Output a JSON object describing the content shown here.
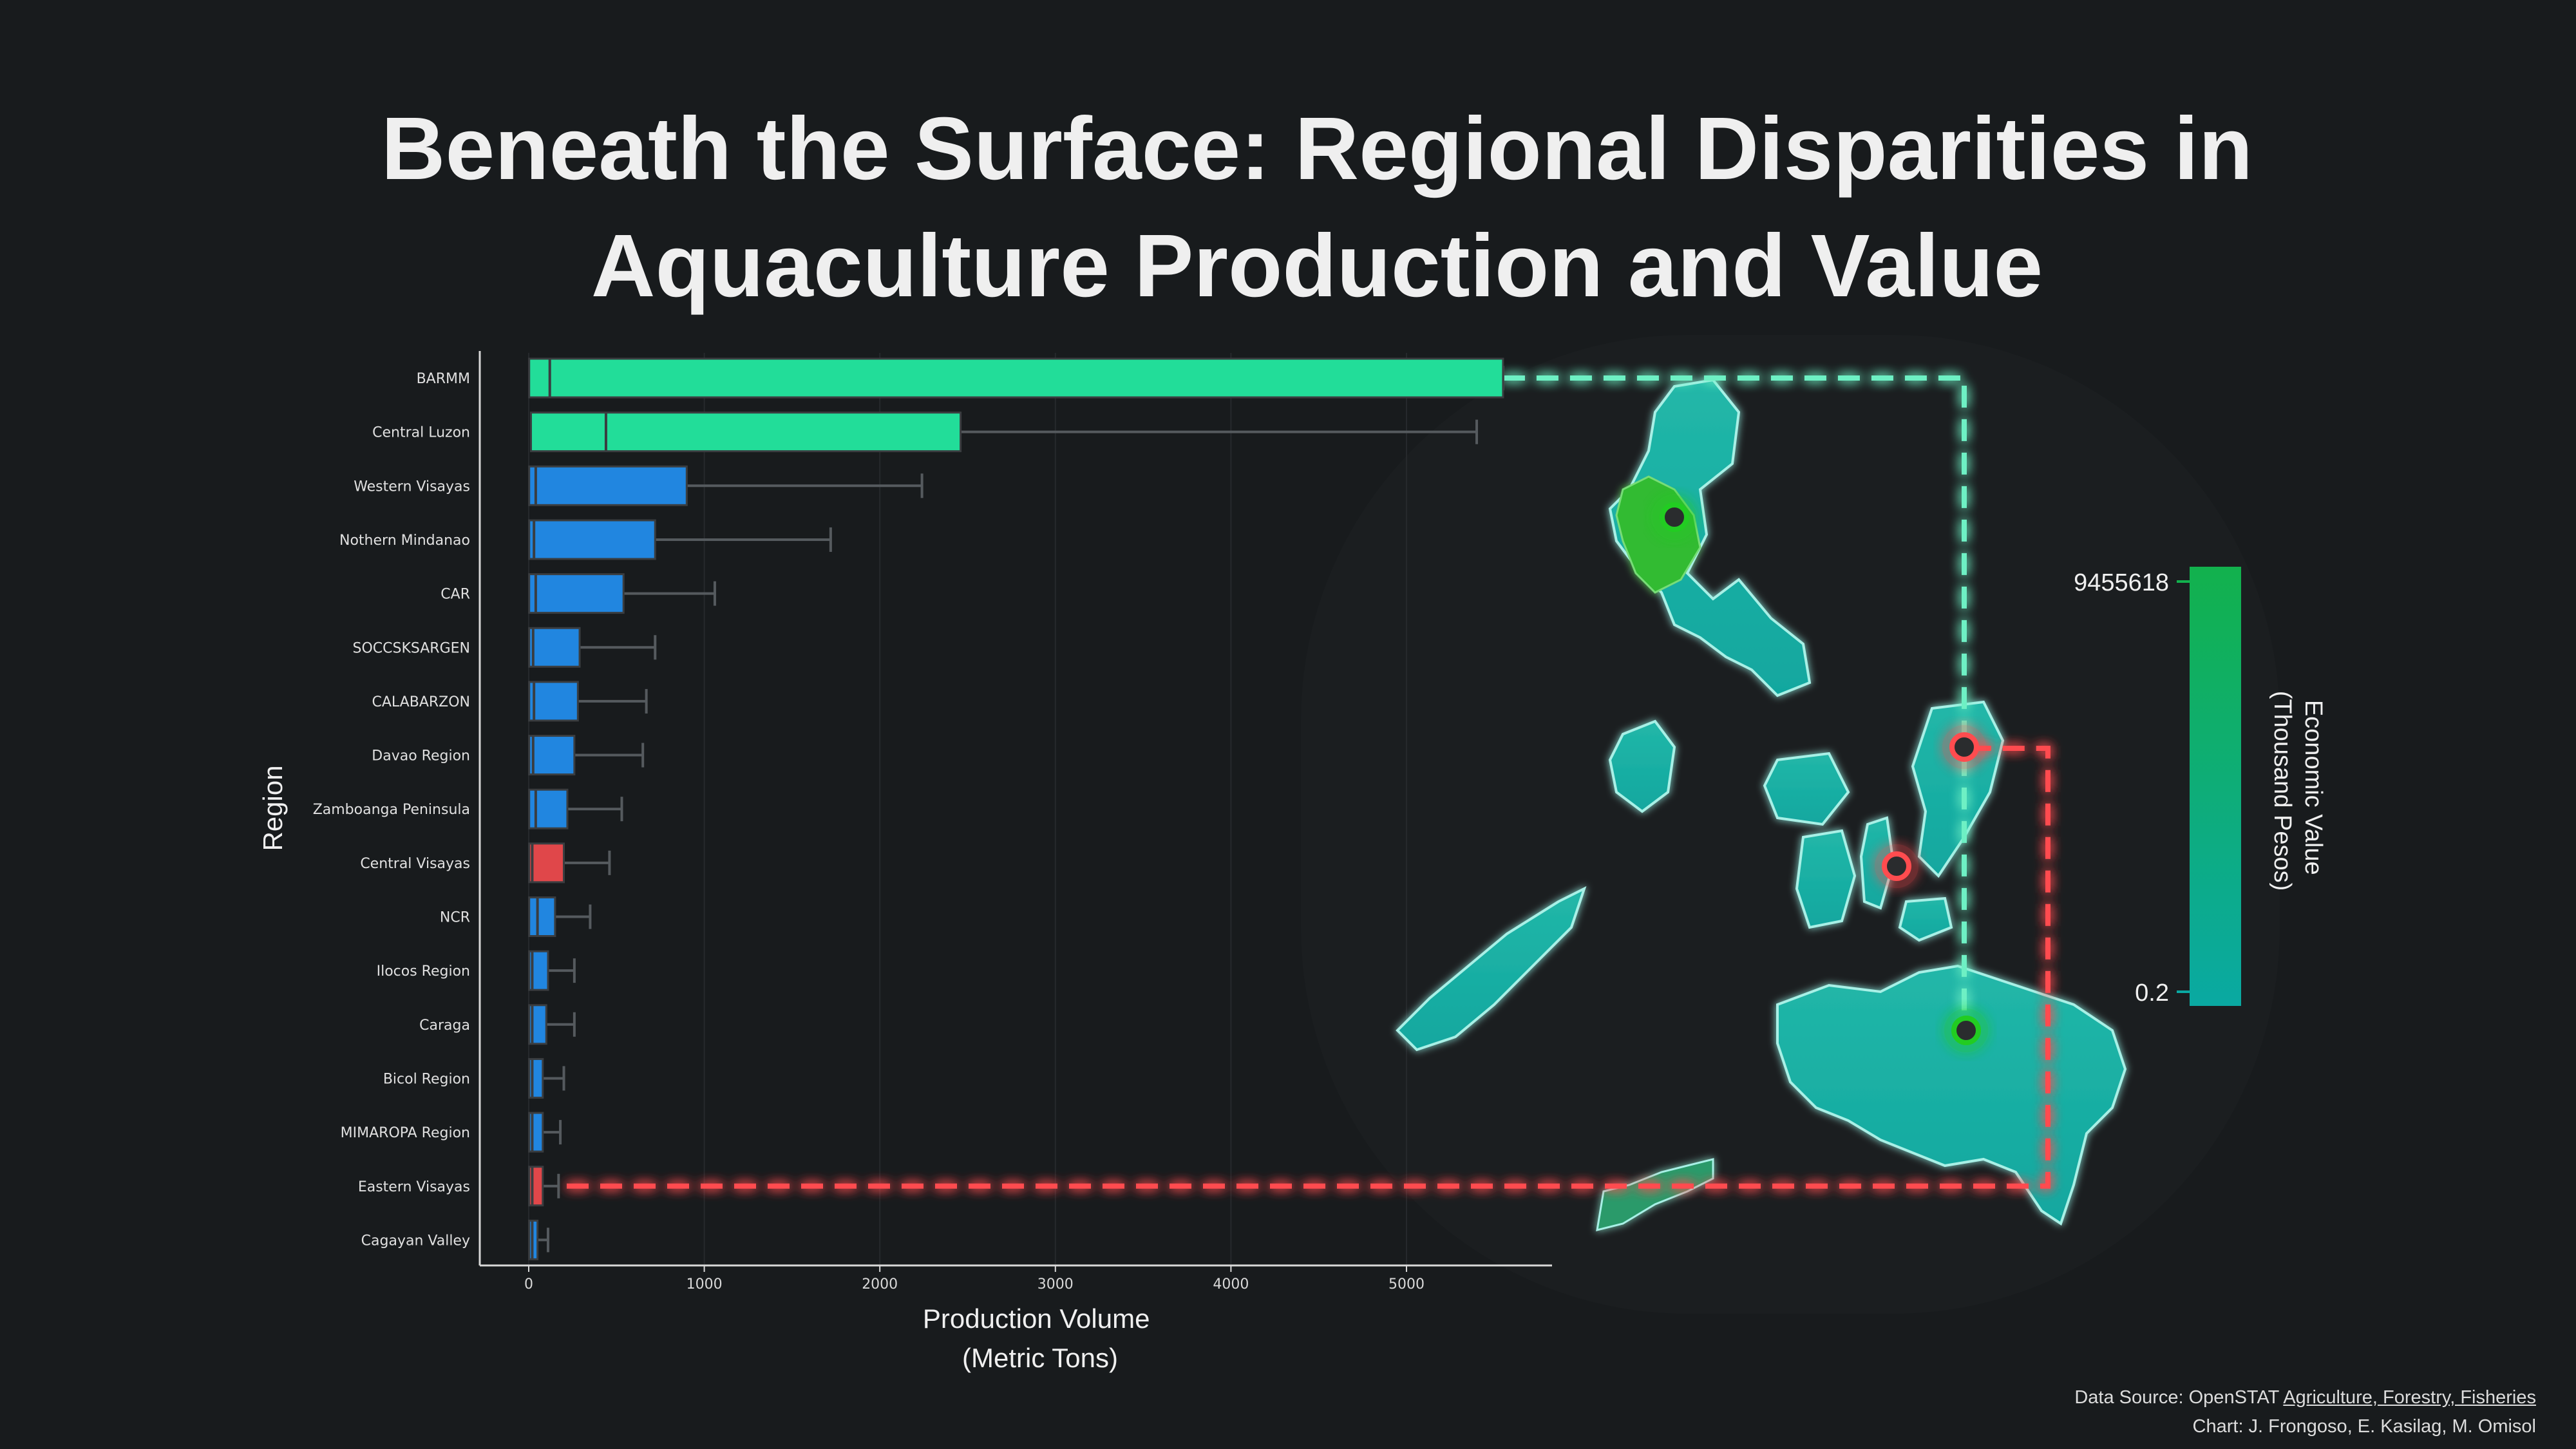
{
  "title": {
    "line1": "Beneath the Surface: Regional Disparities in",
    "line2": "Aquaculture Production and Value"
  },
  "footer": {
    "source_prefix": "Data Source: OpenSTAT ",
    "source_link": "Agriculture, Forestry, Fisheries",
    "credit": "Chart: J. Frongoso, E. Kasilag, M. Omisol"
  },
  "colors": {
    "background": "#181b1d",
    "top": "#22dd99",
    "regular": "#2186e0",
    "bottom": "#e0474a",
    "whisker": "#555a5e",
    "map_land": "#1aaba0",
    "map_highlight": "#33bb33"
  },
  "chart_data": [
    {
      "type": "bar",
      "subtype": "horizontal-box",
      "xlabel": "Production Volume\n(Metric Tons)",
      "ylabel": "Region",
      "xlim": [
        -280,
        5850
      ],
      "xticks": [
        0,
        1000,
        2000,
        3000,
        4000,
        5000
      ],
      "grid": true,
      "series": [
        {
          "region": "BARMM",
          "q1": 10,
          "median": 120,
          "q3": 5550,
          "whisker": 5550,
          "group": "top"
        },
        {
          "region": "Central Luzon",
          "q1": 20,
          "median": 440,
          "q3": 2460,
          "whisker": 5400,
          "group": "top"
        },
        {
          "region": "Western Visayas",
          "q1": 10,
          "median": 40,
          "q3": 900,
          "whisker": 2240,
          "group": "regular"
        },
        {
          "region": "Nothern Mindanao",
          "q1": 10,
          "median": 30,
          "q3": 720,
          "whisker": 1720,
          "group": "regular"
        },
        {
          "region": "CAR",
          "q1": 10,
          "median": 40,
          "q3": 540,
          "whisker": 1060,
          "group": "regular"
        },
        {
          "region": "SOCCSKSARGEN",
          "q1": 10,
          "median": 25,
          "q3": 290,
          "whisker": 720,
          "group": "regular"
        },
        {
          "region": "CALABARZON",
          "q1": 10,
          "median": 30,
          "q3": 280,
          "whisker": 670,
          "group": "regular"
        },
        {
          "region": "Davao Region",
          "q1": 10,
          "median": 25,
          "q3": 260,
          "whisker": 650,
          "group": "regular"
        },
        {
          "region": "Zamboanga Peninsula",
          "q1": 10,
          "median": 40,
          "q3": 220,
          "whisker": 530,
          "group": "regular"
        },
        {
          "region": "Central Visayas",
          "q1": 10,
          "median": 20,
          "q3": 200,
          "whisker": 460,
          "group": "bottom"
        },
        {
          "region": "NCR",
          "q1": 10,
          "median": 50,
          "q3": 150,
          "whisker": 350,
          "group": "regular"
        },
        {
          "region": "Ilocos Region",
          "q1": 10,
          "median": 20,
          "q3": 110,
          "whisker": 260,
          "group": "regular"
        },
        {
          "region": "Caraga",
          "q1": 10,
          "median": 20,
          "q3": 100,
          "whisker": 260,
          "group": "regular"
        },
        {
          "region": "Bicol Region",
          "q1": 10,
          "median": 20,
          "q3": 80,
          "whisker": 200,
          "group": "regular"
        },
        {
          "region": "MIMAROPA Region",
          "q1": 10,
          "median": 20,
          "q3": 80,
          "whisker": 180,
          "group": "regular"
        },
        {
          "region": "Eastern Visayas",
          "q1": 10,
          "median": 20,
          "q3": 80,
          "whisker": 170,
          "group": "bottom"
        },
        {
          "region": "Cagayan Valley",
          "q1": 10,
          "median": 20,
          "q3": 50,
          "whisker": 110,
          "group": "regular"
        }
      ]
    },
    {
      "type": "heatmap",
      "subtype": "choropleth-map",
      "colorbar_label": "Economic Value\n(Thousand Pesos)",
      "colorbar_max_label": "9455618",
      "colorbar_min_label": "0.2",
      "colorbar_colors": [
        "#12b14d",
        "#0aa9a2"
      ],
      "markers": [
        "Central Luzon",
        "BARMM",
        "Eastern Visayas",
        "Central Visayas"
      ]
    }
  ]
}
